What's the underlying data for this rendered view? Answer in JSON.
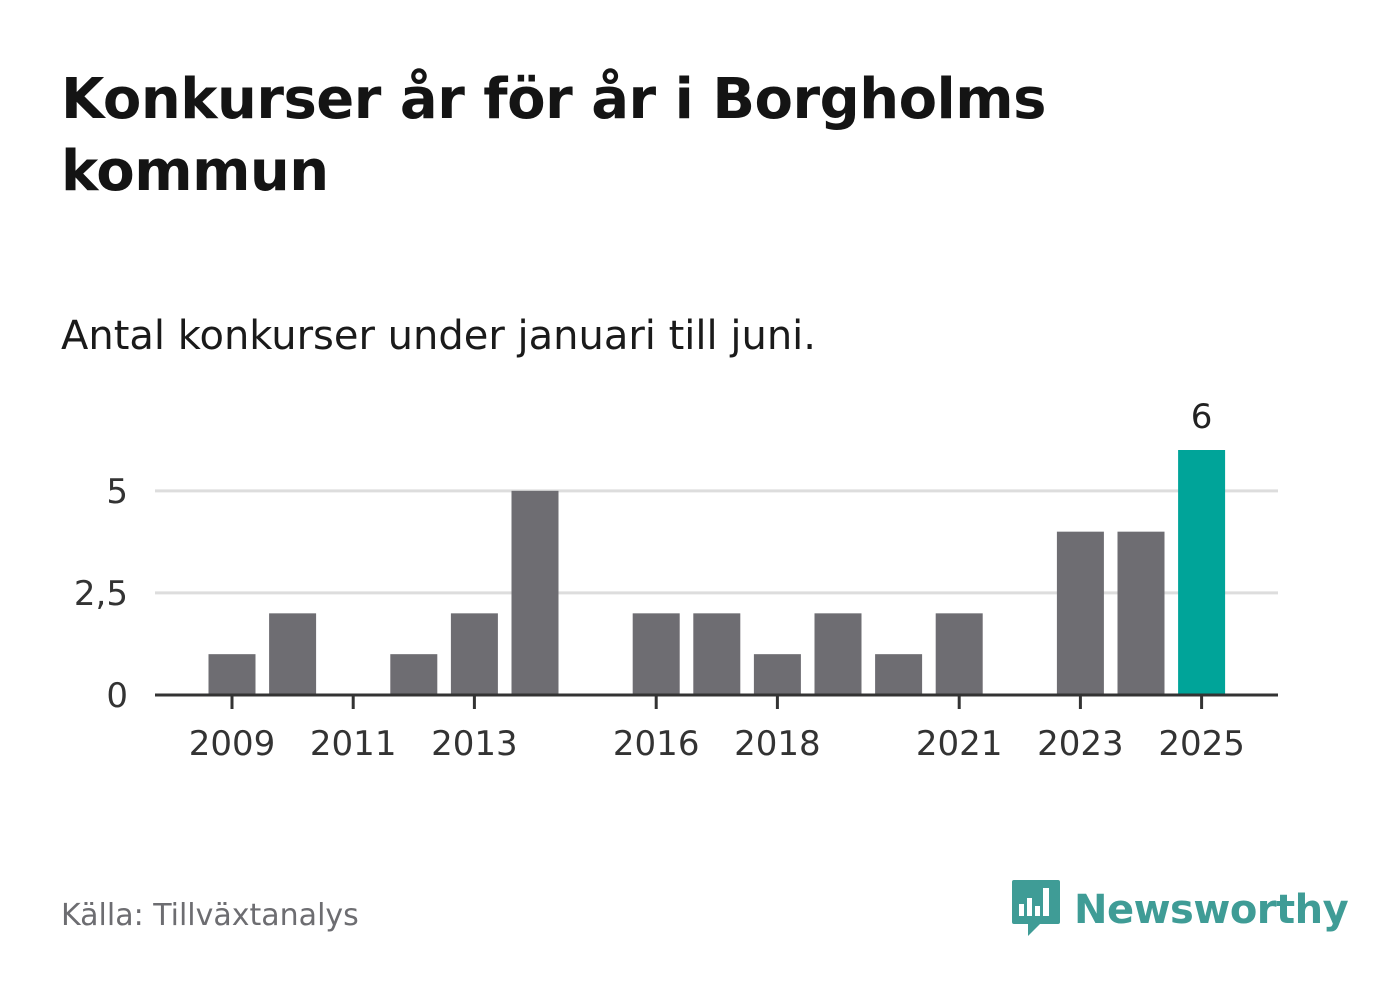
{
  "title": "Konkurser år för år i Borgholms kommun",
  "subtitle": "Antal konkurser under januari till juni.",
  "source": "Källa: Tillväxtanalys",
  "brand": {
    "name": "Newsworthy",
    "icon": "newsworthy-logo-icon",
    "color": "#3f9c96"
  },
  "chart_data": {
    "type": "bar",
    "categories": [
      "2009",
      "2010",
      "2011",
      "2012",
      "2013",
      "2014",
      "2015",
      "2016",
      "2017",
      "2018",
      "2019",
      "2020",
      "2021",
      "2022",
      "2023",
      "2024",
      "2025"
    ],
    "values": [
      1,
      2,
      0,
      1,
      2,
      5,
      0,
      2,
      2,
      1,
      2,
      1,
      2,
      0,
      4,
      4,
      6
    ],
    "x_tick_labels": [
      "2009",
      "2011",
      "2013",
      "2016",
      "2018",
      "2021",
      "2023",
      "2025"
    ],
    "y_ticks": [
      0,
      2.5,
      5
    ],
    "y_tick_labels": [
      "0",
      "2,5",
      "5"
    ],
    "ylim": [
      0,
      6
    ],
    "highlight": {
      "category": "2025",
      "label": "6",
      "color": "#00a499"
    },
    "bar_color": "#6e6d72",
    "grid": true,
    "xlabel": "",
    "ylabel": ""
  }
}
